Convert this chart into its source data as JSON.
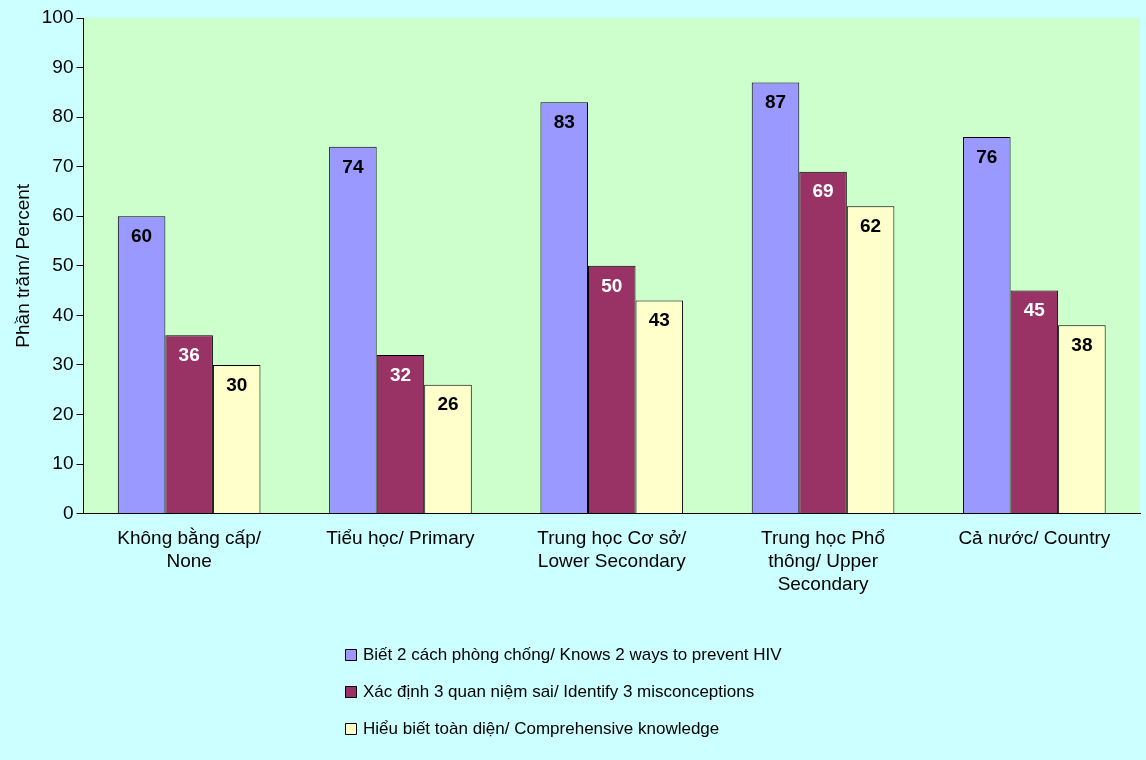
{
  "chart_data": {
    "type": "bar",
    "ylabel": "Phần trăm/ Percent",
    "categories": [
      "Không bằng cấp/ None",
      "Tiểu học/ Primary",
      "Trung học Cơ sở/ Lower Secondary",
      "Trung học Phổ thông/ Upper Secondary",
      "Cả nước/ Country"
    ],
    "series": [
      {
        "name": "Biết 2 cách phòng chống/ Knows 2 ways to prevent HIV",
        "color": "#9999ff",
        "values": [
          60,
          74,
          83,
          87,
          76
        ]
      },
      {
        "name": "Xác định 3 quan niệm sai/ Identify 3 misconceptions",
        "color": "#993366",
        "values": [
          36,
          32,
          50,
          69,
          45
        ]
      },
      {
        "name": "Hiểu biết toàn diện/ Comprehensive knowledge",
        "color": "#ffffcc",
        "values": [
          30,
          26,
          43,
          62,
          38
        ]
      }
    ],
    "ylim": [
      0,
      100
    ],
    "yticks": [
      0,
      10,
      20,
      30,
      40,
      50,
      60,
      70,
      80,
      90,
      100
    ],
    "grid": false,
    "legend": "bottom",
    "data_labels": true
  }
}
